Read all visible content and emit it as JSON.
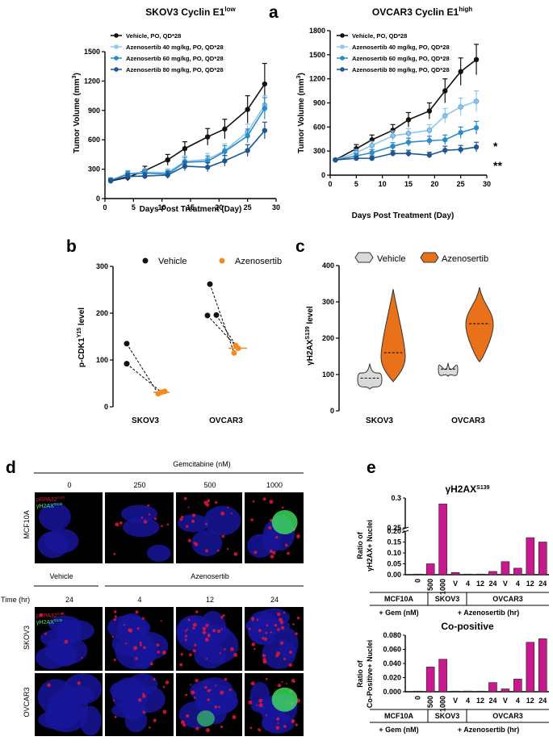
{
  "labels": {
    "a": "a",
    "b": "b",
    "c": "c",
    "d": "d",
    "e": "e"
  },
  "colors": {
    "vehicle": "#111111",
    "azen40": "#8ec6ee",
    "azen60": "#2a8bc8",
    "azen80": "#1d5793",
    "orange": "#f58b1f",
    "orange_dark": "#e8711a",
    "vehicle_violin": "#d9d9d9",
    "magenta": "#c81a8e",
    "nuclei": "#17159a",
    "red_foci": "#e2163a",
    "green_foci": "#3fe35b"
  },
  "chart_data": [
    {
      "id": "a-left",
      "type": "line",
      "title": "SKOV3 Cyclin E1",
      "title_sup": "low",
      "xlabel": "Days Post Treatment (Day)",
      "ylabel": "Tumor Volume (mm",
      "ylabel_sup": "3",
      "ylabel_end": ")",
      "xlim": [
        0,
        30
      ],
      "ylim": [
        0,
        1500
      ],
      "xticks": [
        0,
        5,
        10,
        15,
        20,
        25,
        30
      ],
      "yticks": [
        0,
        300,
        600,
        900,
        1200,
        1500
      ],
      "x": [
        1,
        4,
        7,
        11,
        14,
        18,
        21,
        25,
        28
      ],
      "series": [
        {
          "name": "Vehicle, PO, QD*28",
          "values": [
            180,
            215,
            285,
            395,
            510,
            630,
            710,
            910,
            1170
          ],
          "err": [
            25,
            35,
            45,
            55,
            70,
            85,
            100,
            140,
            210
          ]
        },
        {
          "name": "Azenosertib 40 mg/kg, PO, QD*28",
          "values": [
            190,
            255,
            270,
            265,
            380,
            400,
            490,
            680,
            955
          ],
          "err": [
            25,
            30,
            35,
            40,
            55,
            60,
            70,
            80,
            95
          ]
        },
        {
          "name": "Azenosertib 60 mg/kg, PO, QD*28",
          "values": [
            180,
            250,
            260,
            250,
            370,
            380,
            480,
            640,
            920
          ],
          "err": [
            25,
            30,
            35,
            40,
            50,
            55,
            60,
            70,
            110
          ]
        },
        {
          "name": "Azenosertib 80 mg/kg, PO, QD*28",
          "values": [
            185,
            225,
            230,
            240,
            330,
            320,
            385,
            490,
            695
          ],
          "err": [
            20,
            30,
            30,
            35,
            45,
            45,
            55,
            60,
            85
          ]
        }
      ]
    },
    {
      "id": "a-right",
      "type": "line",
      "title": "OVCAR3 Cyclin E1",
      "title_sup": "high",
      "xlabel": "Days Post Treatment (Day)",
      "ylabel": "Tumor Volume (mm",
      "ylabel_sup": "3",
      "ylabel_end": ")",
      "xlim": [
        0,
        30
      ],
      "ylim": [
        0,
        1800
      ],
      "xticks": [
        0,
        5,
        10,
        15,
        20,
        25,
        30
      ],
      "yticks": [
        0,
        300,
        600,
        900,
        1200,
        1500,
        1800
      ],
      "x": [
        1,
        5,
        8,
        12,
        15,
        19,
        22,
        25,
        28
      ],
      "annotations": [
        "*",
        "**"
      ],
      "series": [
        {
          "name": "Vehicle, PO, QD*28",
          "values": [
            190,
            330,
            440,
            560,
            690,
            800,
            1050,
            1290,
            1440
          ],
          "err": [
            15,
            50,
            60,
            70,
            90,
            100,
            150,
            170,
            190
          ]
        },
        {
          "name": "Azenosertib 40 mg/kg, PO, QD*28",
          "values": [
            190,
            280,
            370,
            490,
            520,
            560,
            740,
            850,
            920
          ],
          "err": [
            15,
            40,
            50,
            60,
            60,
            70,
            90,
            110,
            130
          ]
        },
        {
          "name": "Azenosertib 60 mg/kg, PO, QD*28",
          "values": [
            190,
            240,
            280,
            360,
            410,
            430,
            440,
            530,
            590
          ],
          "err": [
            15,
            30,
            40,
            45,
            50,
            55,
            60,
            70,
            80
          ]
        },
        {
          "name": "Azenosertib 80 mg/kg, PO, QD*28",
          "values": [
            190,
            210,
            210,
            270,
            270,
            250,
            310,
            320,
            350
          ],
          "err": [
            15,
            25,
            30,
            35,
            40,
            35,
            50,
            50,
            60
          ]
        }
      ]
    },
    {
      "id": "b",
      "type": "scatter",
      "ylabel": "p-CDK1",
      "ylabel_sup": "Y15",
      "ylabel_end": " level",
      "ylim": [
        0,
        300
      ],
      "yticks": [
        0,
        100,
        200,
        300
      ],
      "categories": [
        "SKOV3",
        "OVCAR3"
      ],
      "legend": [
        "Vehicle",
        "Azenosertib"
      ],
      "vehicle": [
        [
          135,
          92
        ],
        [
          262,
          195,
          196
        ]
      ],
      "azenosertib": [
        [
          28,
          31,
          33
        ],
        [
          115,
          125,
          131
        ]
      ],
      "azenosertib_mean": [
        31,
        125
      ]
    },
    {
      "id": "c",
      "type": "violin",
      "ylabel": "γH2AX",
      "ylabel_sup": "S139",
      "ylabel_end": " level",
      "ylim": [
        0,
        400
      ],
      "yticks": [
        0,
        100,
        200,
        300,
        400
      ],
      "categories": [
        "SKOV3",
        "OVCAR3"
      ],
      "legend": [
        "Vehicle",
        "Azenosertib"
      ],
      "vehicle": [
        {
          "min": 60,
          "max": 130,
          "median": 90
        },
        {
          "min": 95,
          "max": 132,
          "median": 115
        }
      ],
      "azenosertib": [
        {
          "min": 80,
          "max": 335,
          "median": 160
        },
        {
          "min": 135,
          "max": 340,
          "median": 240
        }
      ]
    },
    {
      "id": "e-top",
      "type": "bar",
      "title": "γH2AX",
      "title_sup": "S139",
      "ylabel": [
        "Ratio of",
        "γH2AX+ Nuclei"
      ],
      "yticks": [
        "0.00",
        "0.05",
        "0.10",
        "0.15",
        "0.20",
        "0.25",
        "0.3"
      ],
      "categories": [
        "0",
        "500",
        "1000",
        "V",
        "4",
        "12",
        "24",
        "V",
        "4",
        "12",
        "24"
      ],
      "values": [
        0.0,
        0.05,
        0.29,
        0.01,
        0.0,
        0.0,
        0.015,
        0.06,
        0.03,
        0.17,
        0.15
      ],
      "groups": [
        "MCF10A",
        "SKOV3",
        "OVCAR3"
      ],
      "subgroups": [
        "+ Gem (nM)",
        "+ Azenosertib (hr)"
      ]
    },
    {
      "id": "e-bottom",
      "type": "bar",
      "title": "Co-positive",
      "ylabel": [
        "Ratio of",
        "Co-Positive+ Nuclei"
      ],
      "ylim": [
        0,
        0.08
      ],
      "yticks": [
        "0.000",
        "0.020",
        "0.040",
        "0.060",
        "0.080"
      ],
      "categories": [
        "0",
        "500",
        "1000",
        "V",
        "4",
        "12",
        "24",
        "V",
        "4",
        "12",
        "24"
      ],
      "values": [
        0.0,
        0.035,
        0.046,
        0.0,
        0.001,
        0.0,
        0.013,
        0.004,
        0.018,
        0.07,
        0.075
      ],
      "groups": [
        "MCF10A",
        "SKOV3",
        "OVCAR3"
      ],
      "subgroups": [
        "+ Gem (nM)",
        "+ Azenosertib (hr)"
      ]
    }
  ],
  "panel_d": {
    "gem_title": "Gemcitabine (nM)",
    "gem_doses": [
      "0",
      "250",
      "500",
      "1000"
    ],
    "row_mcf": "MCF10A",
    "treat_vehicle": "Vehicle",
    "treat_azen": "Azenosertib",
    "time_label": "Time (hr)",
    "times": [
      "24",
      "4",
      "12",
      "24"
    ],
    "row_skov": "SKOV3",
    "row_ovcar": "OVCAR3",
    "stain1": "pRPA32",
    "stain1_sup": "S4/8",
    "stain2": "γH2AX",
    "stain2_sup": "S139"
  }
}
